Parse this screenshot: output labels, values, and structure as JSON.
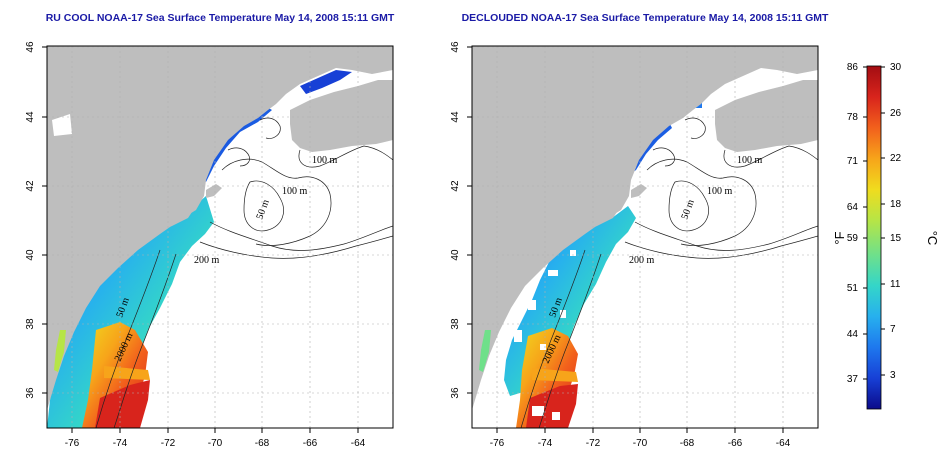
{
  "panels": [
    {
      "id": "left",
      "title": "RU COOL NOAA-17 Sea Surface Temperature May 14, 2008 15:11 GMT",
      "contour_labels": [
        "100 m",
        "100 m",
        "50 m",
        "200 m",
        "50 m",
        "2000 m"
      ]
    },
    {
      "id": "right",
      "title": "DECLOUDED NOAA-17 Sea Surface Temperature May 14, 2008 15:11 GMT",
      "contour_labels": [
        "100 m",
        "100 m",
        "50 m",
        "200 m",
        "50 m",
        "2000 m"
      ]
    }
  ],
  "axes": {
    "x_ticks": [
      "-76",
      "-74",
      "-72",
      "-70",
      "-68",
      "-66",
      "-64"
    ],
    "y_ticks": [
      "46",
      "44",
      "42",
      "40",
      "38",
      "36"
    ],
    "lon_range": [
      -77,
      -63
    ],
    "lat_range": [
      35,
      46
    ]
  },
  "colorbar": {
    "fahrenheit_ticks": [
      "86",
      "78",
      "71",
      "64",
      "59",
      "51",
      "44",
      "37"
    ],
    "celsius_ticks": [
      "30",
      "26",
      "22",
      "18",
      "15",
      "11",
      "7",
      "3"
    ],
    "fahrenheit_label": "°F",
    "celsius_label": "°C",
    "colors": [
      "#0b0b8a",
      "#1740d6",
      "#1e78ee",
      "#27b0ee",
      "#34d6c8",
      "#6fe08a",
      "#b6e546",
      "#f0dc1e",
      "#f7a41a",
      "#f2601c",
      "#d8241c",
      "#a30d12"
    ]
  },
  "colors": {
    "land": "#bebebe",
    "ocean": "#ffffff",
    "grid": "#b0b0b0",
    "title": "#1a1aa6"
  }
}
